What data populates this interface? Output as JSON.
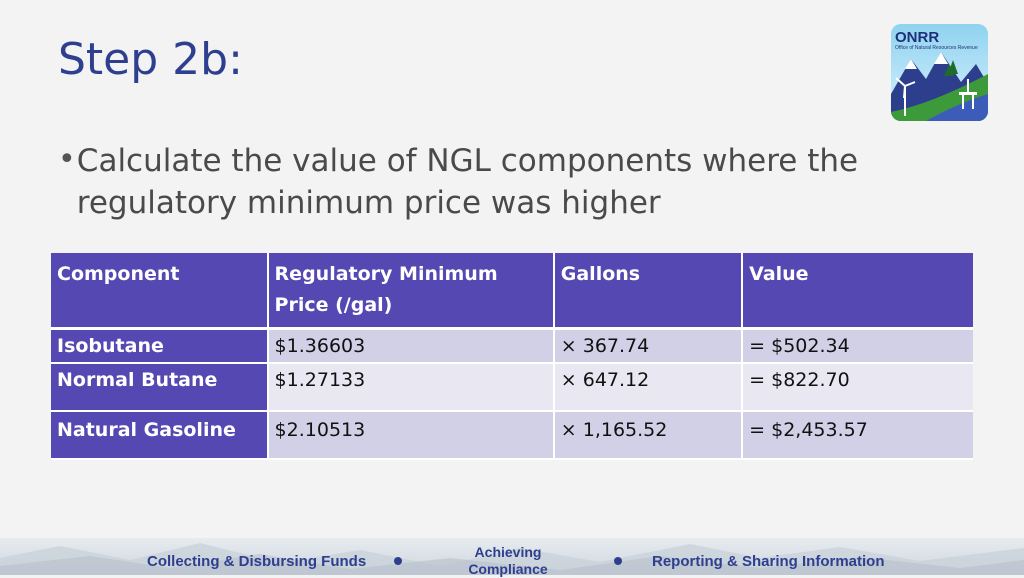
{
  "slide": {
    "title": "Step 2b:",
    "bullet": "Calculate the value of NGL components where the regulatory minimum price was higher"
  },
  "logo": {
    "acronym": "ONRR",
    "subtitle": "Office of Natural Resources Revenue"
  },
  "table": {
    "headers": [
      "Component",
      "Regulatory Minimum Price (/gal)",
      "Gallons",
      "Value"
    ],
    "rows": [
      [
        "Isobutane",
        "$1.36603",
        "× 367.74",
        "= $502.34"
      ],
      [
        "Normal Butane",
        "$1.27133",
        "× 647.12",
        "= $822.70"
      ],
      [
        "Natural Gasoline",
        "$2.10513",
        "× 1,165.52",
        "= $2,453.57"
      ]
    ]
  },
  "footer": {
    "items": [
      "Collecting & Disbursing Funds",
      "Achieving Compliance",
      "Reporting & Sharing Information"
    ]
  },
  "colors": {
    "title": "#2e3f8f",
    "table_header": "#5648b2",
    "row_dark": "#d2d0e7",
    "row_light": "#e8e7f2"
  }
}
